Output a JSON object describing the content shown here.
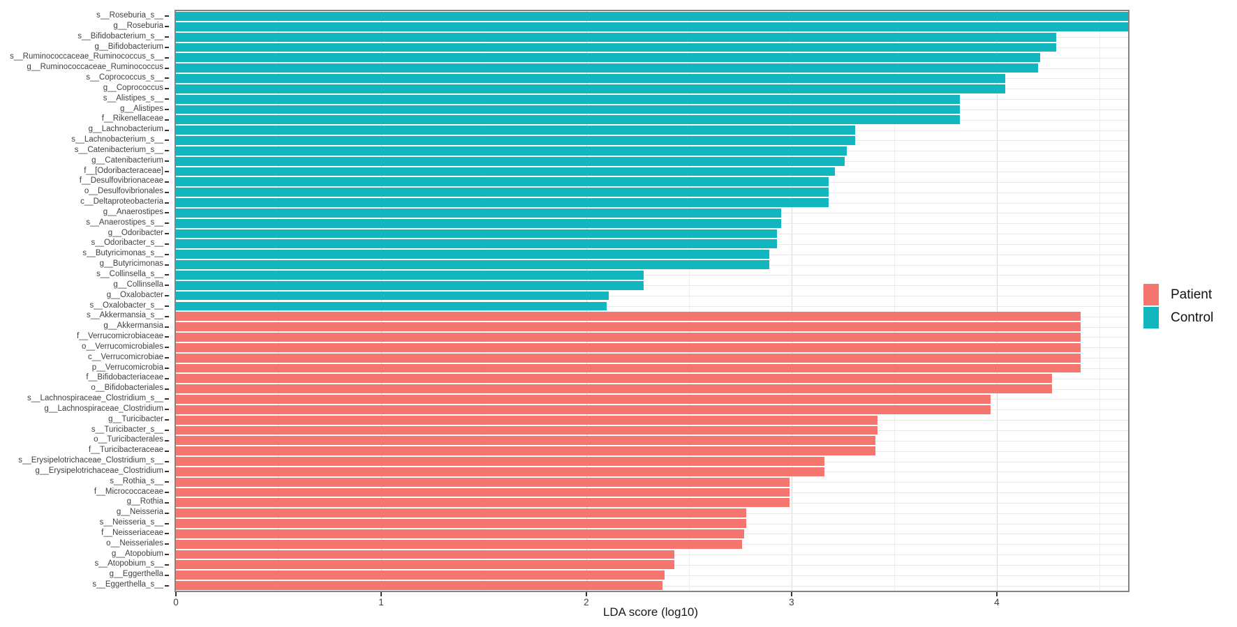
{
  "chart_data": {
    "type": "bar",
    "orientation": "horizontal",
    "xlabel": "LDA score (log10)",
    "ylabel": "",
    "xlim": [
      0,
      4.64
    ],
    "x_major_ticks": [
      0,
      1,
      2,
      3,
      4
    ],
    "x_minor_ticks": [
      0.5,
      1.5,
      2.5,
      3.5,
      4.5
    ],
    "grid": true,
    "legend_position": "right",
    "groups": {
      "Patient": "#f5766e",
      "Control": "#12b6be"
    },
    "bars": [
      {
        "label": "s__Roseburia_s__",
        "value": 4.64,
        "group": "Control"
      },
      {
        "label": "g__Roseburia",
        "value": 4.64,
        "group": "Control"
      },
      {
        "label": "s__Bifidobacterium_s__",
        "value": 4.29,
        "group": "Control"
      },
      {
        "label": "g__Bifidobacterium",
        "value": 4.29,
        "group": "Control"
      },
      {
        "label": "s__Ruminococcaceae_Ruminococcus_s__",
        "value": 4.21,
        "group": "Control"
      },
      {
        "label": "g__Ruminococcaceae_Ruminococcus",
        "value": 4.2,
        "group": "Control"
      },
      {
        "label": "s__Coprococcus_s__",
        "value": 4.04,
        "group": "Control"
      },
      {
        "label": "g__Coprococcus",
        "value": 4.04,
        "group": "Control"
      },
      {
        "label": "s__Alistipes_s__",
        "value": 3.82,
        "group": "Control"
      },
      {
        "label": "g__Alistipes",
        "value": 3.82,
        "group": "Control"
      },
      {
        "label": "f__Rikenellaceae",
        "value": 3.82,
        "group": "Control"
      },
      {
        "label": "g__Lachnobacterium",
        "value": 3.31,
        "group": "Control"
      },
      {
        "label": "s__Lachnobacterium_s__",
        "value": 3.31,
        "group": "Control"
      },
      {
        "label": "s__Catenibacterium_s__",
        "value": 3.27,
        "group": "Control"
      },
      {
        "label": "g__Catenibacterium",
        "value": 3.26,
        "group": "Control"
      },
      {
        "label": "f__[Odoribacteraceae]",
        "value": 3.21,
        "group": "Control"
      },
      {
        "label": "f__Desulfovibrionaceae",
        "value": 3.18,
        "group": "Control"
      },
      {
        "label": "o__Desulfovibrionales",
        "value": 3.18,
        "group": "Control"
      },
      {
        "label": "c__Deltaproteobacteria",
        "value": 3.18,
        "group": "Control"
      },
      {
        "label": "g__Anaerostipes",
        "value": 2.95,
        "group": "Control"
      },
      {
        "label": "s__Anaerostipes_s__",
        "value": 2.95,
        "group": "Control"
      },
      {
        "label": "g__Odoribacter",
        "value": 2.93,
        "group": "Control"
      },
      {
        "label": "s__Odoribacter_s__",
        "value": 2.93,
        "group": "Control"
      },
      {
        "label": "s__Butyricimonas_s__",
        "value": 2.89,
        "group": "Control"
      },
      {
        "label": "g__Butyricimonas",
        "value": 2.89,
        "group": "Control"
      },
      {
        "label": "s__Collinsella_s__",
        "value": 2.28,
        "group": "Control"
      },
      {
        "label": "g__Collinsella",
        "value": 2.28,
        "group": "Control"
      },
      {
        "label": "g__Oxalobacter",
        "value": 2.11,
        "group": "Control"
      },
      {
        "label": "s__Oxalobacter_s__",
        "value": 2.1,
        "group": "Control"
      },
      {
        "label": "s__Akkermansia_s__",
        "value": 4.41,
        "group": "Patient"
      },
      {
        "label": "g__Akkermansia",
        "value": 4.41,
        "group": "Patient"
      },
      {
        "label": "f__Verrucomicrobiaceae",
        "value": 4.41,
        "group": "Patient"
      },
      {
        "label": "o__Verrucomicrobiales",
        "value": 4.41,
        "group": "Patient"
      },
      {
        "label": "c__Verrucomicrobiae",
        "value": 4.41,
        "group": "Patient"
      },
      {
        "label": "p__Verrucomicrobia",
        "value": 4.41,
        "group": "Patient"
      },
      {
        "label": "f__Bifidobacteriaceae",
        "value": 4.27,
        "group": "Patient"
      },
      {
        "label": "o__Bifidobacteriales",
        "value": 4.27,
        "group": "Patient"
      },
      {
        "label": "s__Lachnospiraceae_Clostridium_s__",
        "value": 3.97,
        "group": "Patient"
      },
      {
        "label": "g__Lachnospiraceae_Clostridium",
        "value": 3.97,
        "group": "Patient"
      },
      {
        "label": "g__Turicibacter",
        "value": 3.42,
        "group": "Patient"
      },
      {
        "label": "s__Turicibacter_s__",
        "value": 3.42,
        "group": "Patient"
      },
      {
        "label": "o__Turicibacterales",
        "value": 3.41,
        "group": "Patient"
      },
      {
        "label": "f__Turicibacteraceae",
        "value": 3.41,
        "group": "Patient"
      },
      {
        "label": "s__Erysipelotrichaceae_Clostridium_s__",
        "value": 3.16,
        "group": "Patient"
      },
      {
        "label": "g__Erysipelotrichaceae_Clostridium",
        "value": 3.16,
        "group": "Patient"
      },
      {
        "label": "s__Rothia_s__",
        "value": 2.99,
        "group": "Patient"
      },
      {
        "label": "f__Micrococcaceae",
        "value": 2.99,
        "group": "Patient"
      },
      {
        "label": "g__Rothia",
        "value": 2.99,
        "group": "Patient"
      },
      {
        "label": "g__Neisseria",
        "value": 2.78,
        "group": "Patient"
      },
      {
        "label": "s__Neisseria_s__",
        "value": 2.78,
        "group": "Patient"
      },
      {
        "label": "f__Neisseriaceae",
        "value": 2.77,
        "group": "Patient"
      },
      {
        "label": "o__Neisseriales",
        "value": 2.76,
        "group": "Patient"
      },
      {
        "label": "g__Atopobium",
        "value": 2.43,
        "group": "Patient"
      },
      {
        "label": "s__Atopobium_s__",
        "value": 2.43,
        "group": "Patient"
      },
      {
        "label": "g__Eggerthella",
        "value": 2.38,
        "group": "Patient"
      },
      {
        "label": "s__Eggerthella_s__",
        "value": 2.37,
        "group": "Patient"
      }
    ]
  },
  "legend": {
    "items": [
      {
        "label": "Patient",
        "color": "#f5766e"
      },
      {
        "label": "Control",
        "color": "#12b6be"
      }
    ]
  },
  "axis": {
    "xlabel": "LDA score (log10)"
  },
  "colors": {
    "patient": "#f5766e",
    "control": "#12b6be",
    "panel_border": "#838383",
    "grid_major": "#d9d9d9",
    "grid_minor": "#ededed",
    "text": "#404040"
  }
}
